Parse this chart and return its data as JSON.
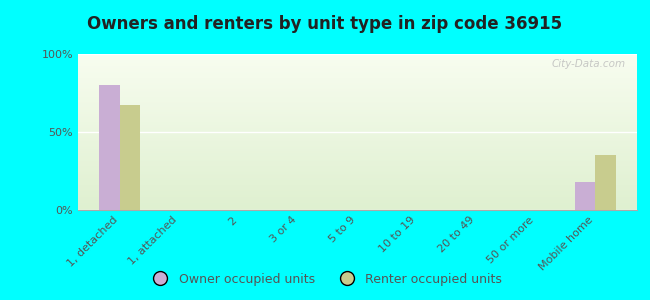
{
  "title": "Owners and renters by unit type in zip code 36915",
  "categories": [
    "1, detached",
    "1, attached",
    "2",
    "3 or 4",
    "5 to 9",
    "10 to 19",
    "20 to 49",
    "50 or more",
    "Mobile home"
  ],
  "owner_values": [
    80,
    0,
    0,
    0,
    0,
    0,
    0,
    0,
    18
  ],
  "renter_values": [
    67,
    0,
    0,
    0,
    0,
    0,
    0,
    0,
    35
  ],
  "owner_color": "#c9aed4",
  "renter_color": "#c8cc8e",
  "background_color": "#00ffff",
  "plot_bg_color": "#eef7e4",
  "ylim": [
    0,
    100
  ],
  "yticks": [
    0,
    50,
    100
  ],
  "ytick_labels": [
    "0%",
    "50%",
    "100%"
  ],
  "bar_width": 0.35,
  "legend_owner": "Owner occupied units",
  "legend_renter": "Renter occupied units",
  "watermark": "City-Data.com",
  "title_fontsize": 12,
  "tick_fontsize": 8,
  "legend_fontsize": 9
}
